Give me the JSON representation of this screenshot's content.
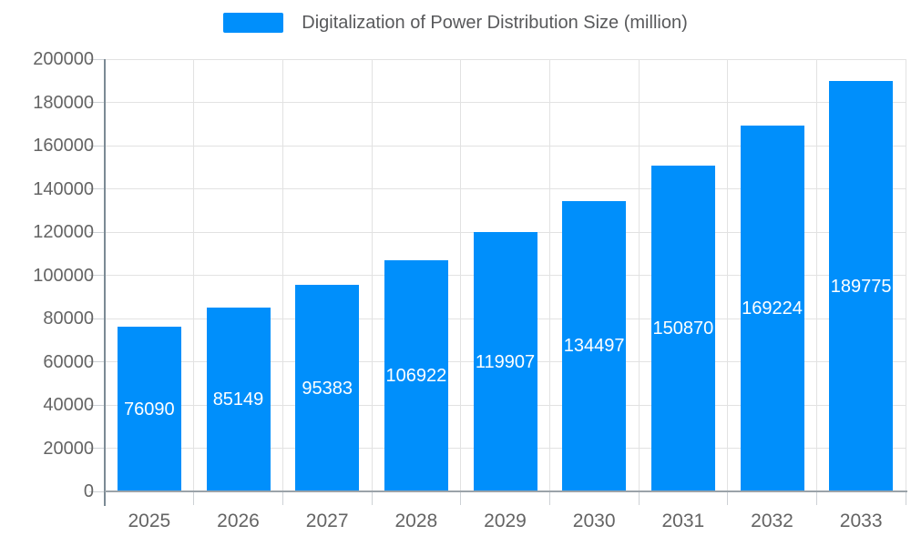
{
  "chart_data": {
    "type": "bar",
    "title": "Digitalization of Power Distribution Size (million)",
    "legend_position": "top",
    "categories": [
      "2025",
      "2026",
      "2027",
      "2028",
      "2029",
      "2030",
      "2031",
      "2032",
      "2033"
    ],
    "series": [
      {
        "name": "Digitalization of Power Distribution Size (million)",
        "values": [
          76090,
          85149,
          95383,
          106922,
          119907,
          134497,
          150870,
          169224,
          189775
        ]
      }
    ],
    "data_labels": [
      "76090",
      "85149",
      "95383",
      "106922",
      "119907",
      "134497",
      "150870",
      "169224",
      "189775"
    ],
    "data_label_position": "center-of-bar",
    "xlabel": "",
    "ylabel": "",
    "ylim": [
      0,
      200000
    ],
    "yticks": [
      0,
      20000,
      40000,
      60000,
      80000,
      100000,
      120000,
      140000,
      160000,
      180000,
      200000
    ],
    "ytick_labels": [
      "0",
      "20000",
      "40000",
      "60000",
      "80000",
      "100000",
      "120000",
      "140000",
      "160000",
      "180000",
      "200000"
    ],
    "grid": "horizontal and vertical category boundaries"
  },
  "colors": {
    "bar": "#008FFB",
    "bar_label": "#FFFFFF",
    "axis_label": "#646464",
    "legend_text": "#58595B",
    "gridline": "#E2E2E2",
    "y_axis_line": "#7B8A94",
    "x_axis_line": "#9BA3A9",
    "tick": "#CDD1D5",
    "background": "#FFFFFF"
  }
}
